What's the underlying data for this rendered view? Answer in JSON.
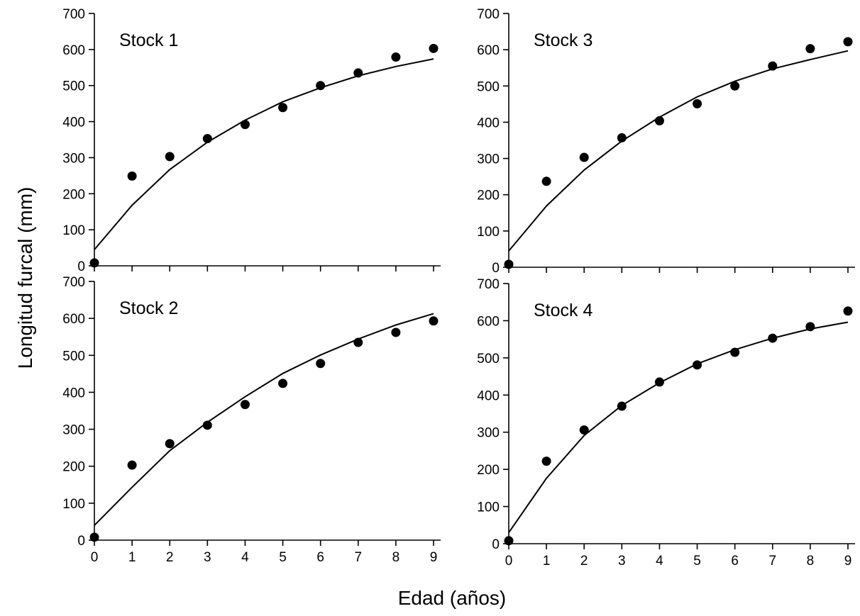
{
  "figure": {
    "ylabel": "Longitud furcal (mm)",
    "xlabel": "Edad (años)",
    "colors": {
      "ink": "#000000",
      "background": "#ffffff"
    }
  },
  "chart_data": [
    {
      "type": "scatter",
      "label": "Stock 1",
      "xlim": [
        0,
        9
      ],
      "ylim": [
        0,
        700
      ],
      "x_ticks": [
        0,
        1,
        2,
        3,
        4,
        5,
        6,
        7,
        8,
        9
      ],
      "y_ticks": [
        0,
        100,
        200,
        300,
        400,
        500,
        600,
        700
      ],
      "x_tick_labels_shown": false,
      "grid": false,
      "observed": {
        "x": [
          0,
          1,
          2,
          3,
          4,
          5,
          6,
          7,
          8,
          9
        ],
        "y": [
          8,
          249,
          303,
          353,
          392,
          439,
          500,
          535,
          579,
          603
        ]
      },
      "fitted": {
        "x": [
          0,
          1,
          2,
          3,
          4,
          5,
          6,
          7,
          8,
          9
        ],
        "y": [
          45,
          168,
          267,
          343,
          404,
          455,
          494,
          527,
          553,
          574
        ]
      }
    },
    {
      "type": "scatter",
      "label": "Stock 3",
      "xlim": [
        0,
        9
      ],
      "ylim": [
        0,
        700
      ],
      "x_ticks": [
        0,
        1,
        2,
        3,
        4,
        5,
        6,
        7,
        8,
        9
      ],
      "y_ticks": [
        0,
        100,
        200,
        300,
        400,
        500,
        600,
        700
      ],
      "x_tick_labels_shown": false,
      "grid": false,
      "observed": {
        "x": [
          0,
          1,
          2,
          3,
          4,
          5,
          6,
          7,
          8,
          9
        ],
        "y": [
          8,
          237,
          303,
          357,
          404,
          451,
          500,
          555,
          603,
          622
        ]
      },
      "fitted": {
        "x": [
          0,
          1,
          2,
          3,
          4,
          5,
          6,
          7,
          8,
          9
        ],
        "y": [
          45,
          169,
          268,
          348,
          414,
          470,
          513,
          547,
          573,
          597
        ]
      }
    },
    {
      "type": "scatter",
      "label": "Stock 2",
      "xlim": [
        0,
        9
      ],
      "ylim": [
        0,
        700
      ],
      "x_ticks": [
        0,
        1,
        2,
        3,
        4,
        5,
        6,
        7,
        8,
        9
      ],
      "y_ticks": [
        0,
        100,
        200,
        300,
        400,
        500,
        600,
        700
      ],
      "x_tick_labels_shown": true,
      "grid": false,
      "observed": {
        "x": [
          0,
          1,
          2,
          3,
          4,
          5,
          6,
          7,
          8,
          9
        ],
        "y": [
          8,
          203,
          261,
          311,
          367,
          424,
          478,
          535,
          562,
          593
        ]
      },
      "fitted": {
        "x": [
          0,
          1,
          2,
          3,
          4,
          5,
          6,
          7,
          8,
          9
        ],
        "y": [
          40,
          143,
          242,
          319,
          388,
          451,
          501,
          544,
          582,
          613
        ]
      }
    },
    {
      "type": "scatter",
      "label": "Stock 4",
      "xlim": [
        0,
        9
      ],
      "ylim": [
        0,
        700
      ],
      "x_ticks": [
        0,
        1,
        2,
        3,
        4,
        5,
        6,
        7,
        8,
        9
      ],
      "y_ticks": [
        0,
        100,
        200,
        300,
        400,
        500,
        600,
        700
      ],
      "x_tick_labels_shown": true,
      "grid": false,
      "observed": {
        "x": [
          0,
          1,
          2,
          3,
          4,
          5,
          6,
          7,
          8,
          9
        ],
        "y": [
          8,
          222,
          306,
          370,
          435,
          481,
          515,
          553,
          584,
          626
        ]
      },
      "fitted": {
        "x": [
          0,
          1,
          2,
          3,
          4,
          5,
          6,
          7,
          8,
          9
        ],
        "y": [
          30,
          176,
          291,
          372,
          433,
          484,
          522,
          553,
          578,
          596
        ]
      }
    }
  ]
}
